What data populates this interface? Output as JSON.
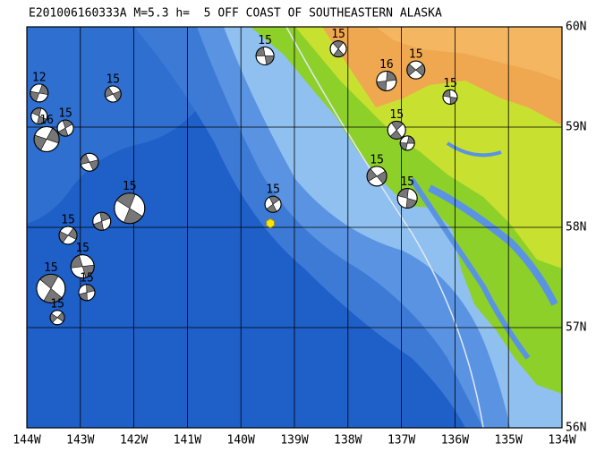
{
  "title": "E201006160333A M=5.3 h=  5 OFF COAST OF SOUTHEASTERN ALASKA",
  "lonlim": [
    -144,
    -134
  ],
  "latlim": [
    56,
    60
  ],
  "lonticks": [
    {
      "value": -144,
      "label": "144W"
    },
    {
      "value": -143,
      "label": "143W"
    },
    {
      "value": -142,
      "label": "142W"
    },
    {
      "value": -141,
      "label": "141W"
    },
    {
      "value": -140,
      "label": "140W"
    },
    {
      "value": -139,
      "label": "139W"
    },
    {
      "value": -138,
      "label": "138W"
    },
    {
      "value": -137,
      "label": "137W"
    },
    {
      "value": -136,
      "label": "136W"
    },
    {
      "value": -135,
      "label": "135W"
    },
    {
      "value": -134,
      "label": "134W"
    }
  ],
  "latticks": [
    {
      "value": 56,
      "label": "56N"
    },
    {
      "value": 57,
      "label": "57N"
    },
    {
      "value": 58,
      "label": "58N"
    },
    {
      "value": 59,
      "label": "59N"
    },
    {
      "value": 60,
      "label": "60N"
    }
  ],
  "epicenter": {
    "lon": -139.45,
    "lat": 58.04
  },
  "events": [
    {
      "lon": -139.55,
      "lat": 59.71,
      "label": "15"
    },
    {
      "lon": -138.18,
      "lat": 59.78,
      "label": "15"
    },
    {
      "lon": -137.28,
      "lat": 59.46,
      "label": "16"
    },
    {
      "lon": -136.73,
      "lat": 59.57,
      "label": "15"
    },
    {
      "lon": -136.09,
      "lat": 59.3,
      "label": "15"
    },
    {
      "lon": -137.09,
      "lat": 58.97,
      "label": "15"
    },
    {
      "lon": -136.89,
      "lat": 58.84,
      "label": null
    },
    {
      "lon": -137.46,
      "lat": 58.51,
      "label": "15"
    },
    {
      "lon": -136.89,
      "lat": 58.29,
      "label": "15"
    },
    {
      "lon": -139.4,
      "lat": 58.23,
      "label": "15"
    },
    {
      "lon": -143.77,
      "lat": 59.34,
      "label": "12"
    },
    {
      "lon": -142.39,
      "lat": 59.33,
      "label": "15"
    },
    {
      "lon": -143.77,
      "lat": 59.11,
      "label": null
    },
    {
      "lon": -143.28,
      "lat": 58.99,
      "label": "15"
    },
    {
      "lon": -143.63,
      "lat": 58.88,
      "label": "16"
    },
    {
      "lon": -142.83,
      "lat": 58.65,
      "label": null
    },
    {
      "lon": -142.08,
      "lat": 58.19,
      "label": "15"
    },
    {
      "lon": -142.6,
      "lat": 58.06,
      "label": null
    },
    {
      "lon": -143.23,
      "lat": 57.92,
      "label": "15"
    },
    {
      "lon": -142.96,
      "lat": 57.61,
      "label": "15"
    },
    {
      "lon": -143.55,
      "lat": 57.39,
      "label": "15"
    },
    {
      "lon": -142.88,
      "lat": 57.35,
      "label": "15"
    },
    {
      "lon": -143.43,
      "lat": 57.1,
      "label": "15"
    }
  ]
}
